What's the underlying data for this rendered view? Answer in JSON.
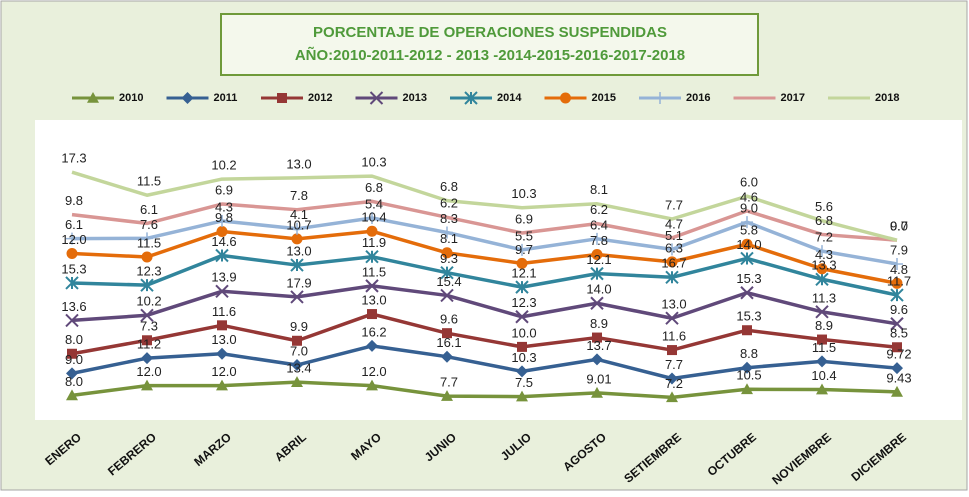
{
  "chart_data": {
    "type": "stacked_line",
    "title": [
      "PORCENTAJE DE OPERACIONES SUSPENDIDAS",
      "AÑO:2010-2011-2012 - 2013 -2014-2015-2016-2017-2018"
    ],
    "categories": [
      "ENERO",
      "FEBRERO",
      "MARZO",
      "ABRIL",
      "MAYO",
      "JUNIO",
      "JULIO",
      "AGOSTO",
      "SETIEMBRE",
      "OCTUBRE",
      "NOVIEMBRE",
      "DICIEMBRE"
    ],
    "ylim": [
      0,
      120
    ],
    "legend": "top",
    "series": [
      {
        "name": "2010",
        "color": "#77933c",
        "marker": "triangle",
        "values": [
          8.0,
          12.0,
          12.0,
          13.4,
          12.0,
          7.7,
          7.5,
          9.01,
          7.2,
          10.5,
          10.4,
          9.43
        ],
        "value_labels": [
          "8.0",
          "12.0",
          "12.0",
          "13.4",
          "12.0",
          "7.7",
          "7.5",
          "9.01",
          "7.2",
          "10.5",
          "10.4",
          "9.43"
        ]
      },
      {
        "name": "2011",
        "color": "#366092",
        "marker": "diamond",
        "values": [
          9.0,
          11.2,
          13.0,
          7.0,
          16.2,
          16.1,
          10.3,
          13.7,
          7.7,
          8.8,
          11.5,
          9.72
        ],
        "value_labels": [
          "9.0",
          "11.2",
          "13.0",
          "7.0",
          "16.2",
          "16.1",
          "10.3",
          "13.7",
          "7.7",
          "8.8",
          "11.5",
          "9.72"
        ]
      },
      {
        "name": "2012",
        "color": "#953735",
        "marker": "square",
        "values": [
          8.0,
          7.3,
          11.6,
          9.9,
          13.0,
          9.6,
          10.0,
          8.9,
          11.6,
          15.3,
          8.9,
          8.5
        ],
        "value_labels": [
          "8.0",
          "7.3",
          "11.6",
          "9.9",
          "13.0",
          "9.6",
          "10.0",
          "8.9",
          "11.6",
          "15.3",
          "8.9",
          "8.5"
        ]
      },
      {
        "name": "2013",
        "color": "#60497a",
        "marker": "x",
        "values": [
          13.6,
          10.2,
          13.9,
          17.9,
          11.5,
          15.4,
          12.3,
          14.0,
          13.0,
          15.3,
          11.3,
          9.6
        ],
        "value_labels": [
          "13.6",
          "10.2",
          "13.9",
          "17.9",
          "11.5",
          "15.4",
          "12.3",
          "14.0",
          "13.0",
          "15.3",
          "11.3",
          "9.6"
        ]
      },
      {
        "name": "2014",
        "color": "#31859c",
        "marker": "star",
        "values": [
          15.3,
          12.3,
          14.6,
          13.0,
          11.9,
          9.3,
          12.1,
          12.1,
          16.7,
          14.0,
          13.3,
          11.7
        ],
        "value_labels": [
          "15.3",
          "12.3",
          "14.6",
          "13.0",
          "11.9",
          "9.3",
          "12.1",
          "12.1",
          "16.7",
          "14.0",
          "13.3",
          "11.7"
        ]
      },
      {
        "name": "2015",
        "color": "#e46c0a",
        "marker": "circle",
        "values": [
          12.0,
          11.5,
          9.8,
          10.7,
          10.4,
          8.1,
          9.7,
          7.8,
          6.3,
          5.8,
          4.3,
          4.8
        ],
        "value_labels": [
          "12.0",
          "11.5",
          "9.8",
          "10.7",
          "10.4",
          "8.1",
          "9.7",
          "7.8",
          "6.3",
          "5.8",
          "4.3",
          "4.8"
        ]
      },
      {
        "name": "2016",
        "color": "#95b3d7",
        "marker": "plus",
        "values": [
          6.1,
          7.6,
          4.3,
          4.1,
          5.4,
          8.3,
          5.5,
          6.4,
          5.1,
          9.0,
          7.2,
          7.9
        ],
        "value_labels": [
          "6.1",
          "7.6",
          "4.3",
          "4.1",
          "5.4",
          "8.3",
          "5.5",
          "6.4",
          "5.1",
          "9.0",
          "7.2",
          "7.9"
        ]
      },
      {
        "name": "2017",
        "color": "#d99694",
        "marker": "none",
        "values": [
          9.8,
          6.1,
          6.9,
          7.8,
          6.8,
          6.2,
          6.9,
          6.2,
          4.7,
          4.6,
          6.8,
          9.7
        ],
        "value_labels": [
          "9.8",
          "6.1",
          "6.9",
          "7.8",
          "6.8",
          "6.2",
          "6.9",
          "6.2",
          "4.7",
          "4.6",
          "6.8",
          "9.7"
        ]
      },
      {
        "name": "2018",
        "color": "#c3d69b",
        "marker": "none",
        "values": [
          17.3,
          11.5,
          10.2,
          13.0,
          10.3,
          6.8,
          10.3,
          8.1,
          7.7,
          6.0,
          5.6,
          0.0
        ],
        "value_labels": [
          "17.3",
          "11.5",
          "10.2",
          "13.0",
          "10.3",
          "6.8",
          "10.3",
          "8.1",
          "7.7",
          "6.0",
          "5.6",
          "0.0"
        ]
      }
    ]
  }
}
